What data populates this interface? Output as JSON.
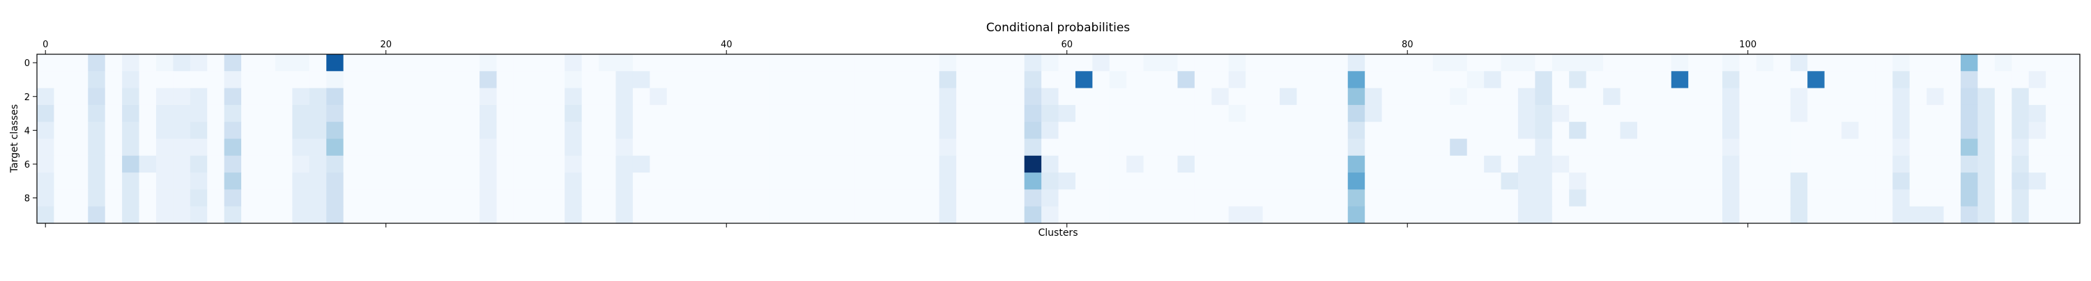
{
  "chart_data": {
    "type": "heatmap",
    "title": "Conditional probabilities",
    "xlabel": "Clusters",
    "ylabel": "Target classes",
    "x_axis_position": "top",
    "n_clusters": 120,
    "n_classes": 10,
    "xlim": [
      -0.5,
      119.5
    ],
    "ylim": [
      9.5,
      -0.5
    ],
    "x_ticks": [
      0,
      20,
      40,
      60,
      80,
      100
    ],
    "y_ticks": [
      0,
      2,
      4,
      6,
      8
    ],
    "colormap": "Blues",
    "colorscale_max": 0.03,
    "colors": {
      "low": "#f7fbff",
      "high": "#08306b"
    },
    "rows": [
      {
        "class": 0,
        "values": {
          "3": 0.006,
          "5": 0.002,
          "7": 0.001,
          "8": 0.003,
          "9": 0.002,
          "11": 0.006,
          "14": 0.001,
          "15": 0.001,
          "17": 0.025,
          "26": 0.001,
          "31": 0.002,
          "33": 0.001,
          "34": 0.001,
          "53": 0.001,
          "58": 0.003,
          "59": 0.001,
          "62": 0.002,
          "65": 0.001,
          "66": 0.001,
          "70": 0.001,
          "77": 0.003,
          "82": 0.001,
          "83": 0.001,
          "86": 0.001,
          "87": 0.001,
          "89": 0.001,
          "90": 0.001,
          "91": 0.001,
          "96": 0.001,
          "99": 0.001,
          "101": 0.001,
          "103": 0.003,
          "109": 0.001,
          "113": 0.013,
          "115": 0.001
        }
      },
      {
        "class": 1,
        "values": {
          "3": 0.005,
          "5": 0.003,
          "11": 0.002,
          "17": 0.001,
          "26": 0.006,
          "31": 0.001,
          "34": 0.003,
          "35": 0.003,
          "53": 0.005,
          "58": 0.005,
          "61": 0.023,
          "63": 0.001,
          "67": 0.007,
          "70": 0.002,
          "77": 0.016,
          "84": 0.001,
          "85": 0.003,
          "88": 0.005,
          "90": 0.004,
          "96": 0.022,
          "99": 0.004,
          "104": 0.022,
          "109": 0.004,
          "113": 0.006,
          "117": 0.002
        }
      },
      {
        "class": 2,
        "values": {
          "0": 0.003,
          "3": 0.006,
          "5": 0.004,
          "7": 0.002,
          "8": 0.002,
          "9": 0.003,
          "11": 0.006,
          "15": 0.003,
          "16": 0.004,
          "17": 0.007,
          "26": 0.002,
          "31": 0.003,
          "34": 0.003,
          "36": 0.002,
          "53": 0.003,
          "58": 0.006,
          "59": 0.003,
          "69": 0.002,
          "73": 0.003,
          "77": 0.012,
          "78": 0.003,
          "83": 0.001,
          "87": 0.003,
          "88": 0.005,
          "92": 0.003,
          "99": 0.003,
          "103": 0.002,
          "109": 0.003,
          "111": 0.002,
          "113": 0.007,
          "114": 0.004,
          "116": 0.004
        }
      },
      {
        "class": 3,
        "values": {
          "0": 0.005,
          "3": 0.005,
          "5": 0.005,
          "7": 0.003,
          "8": 0.003,
          "9": 0.003,
          "11": 0.004,
          "15": 0.004,
          "16": 0.004,
          "17": 0.006,
          "26": 0.003,
          "31": 0.004,
          "34": 0.003,
          "53": 0.003,
          "58": 0.007,
          "59": 0.004,
          "60": 0.003,
          "70": 0.001,
          "77": 0.008,
          "78": 0.003,
          "87": 0.003,
          "88": 0.004,
          "89": 0.002,
          "99": 0.003,
          "103": 0.002,
          "109": 0.003,
          "113": 0.007,
          "114": 0.004,
          "116": 0.004,
          "117": 0.003
        }
      },
      {
        "class": 4,
        "values": {
          "0": 0.003,
          "3": 0.004,
          "5": 0.004,
          "7": 0.003,
          "8": 0.003,
          "9": 0.004,
          "11": 0.006,
          "15": 0.004,
          "16": 0.004,
          "17": 0.009,
          "26": 0.003,
          "31": 0.003,
          "34": 0.003,
          "53": 0.003,
          "58": 0.008,
          "59": 0.003,
          "77": 0.005,
          "87": 0.003,
          "88": 0.004,
          "90": 0.005,
          "93": 0.003,
          "99": 0.003,
          "106": 0.002,
          "109": 0.003,
          "113": 0.007,
          "114": 0.004,
          "116": 0.004,
          "117": 0.002
        }
      },
      {
        "class": 5,
        "values": {
          "0": 0.002,
          "3": 0.004,
          "5": 0.004,
          "7": 0.002,
          "8": 0.002,
          "9": 0.002,
          "11": 0.009,
          "15": 0.003,
          "16": 0.003,
          "17": 0.011,
          "26": 0.002,
          "31": 0.003,
          "34": 0.002,
          "53": 0.002,
          "58": 0.005,
          "77": 0.004,
          "83": 0.006,
          "88": 0.003,
          "99": 0.002,
          "109": 0.002,
          "113": 0.011,
          "114": 0.004,
          "116": 0.003
        }
      },
      {
        "class": 6,
        "values": {
          "0": 0.002,
          "3": 0.004,
          "5": 0.008,
          "6": 0.003,
          "7": 0.002,
          "8": 0.002,
          "9": 0.004,
          "11": 0.006,
          "15": 0.002,
          "16": 0.003,
          "17": 0.005,
          "26": 0.002,
          "31": 0.002,
          "34": 0.003,
          "35": 0.003,
          "53": 0.003,
          "58": 0.03,
          "59": 0.003,
          "64": 0.002,
          "67": 0.003,
          "77": 0.013,
          "85": 0.003,
          "87": 0.003,
          "88": 0.003,
          "89": 0.002,
          "99": 0.003,
          "109": 0.003,
          "113": 0.005,
          "114": 0.004,
          "116": 0.004
        }
      },
      {
        "class": 7,
        "values": {
          "0": 0.003,
          "3": 0.004,
          "5": 0.004,
          "7": 0.002,
          "8": 0.002,
          "9": 0.003,
          "11": 0.009,
          "15": 0.003,
          "16": 0.003,
          "17": 0.006,
          "26": 0.002,
          "31": 0.003,
          "34": 0.003,
          "53": 0.003,
          "58": 0.013,
          "59": 0.004,
          "60": 0.003,
          "77": 0.016,
          "86": 0.004,
          "87": 0.003,
          "88": 0.003,
          "90": 0.002,
          "99": 0.003,
          "103": 0.004,
          "109": 0.005,
          "113": 0.009,
          "114": 0.004,
          "116": 0.005,
          "117": 0.003
        }
      },
      {
        "class": 8,
        "values": {
          "0": 0.003,
          "3": 0.004,
          "5": 0.004,
          "7": 0.002,
          "8": 0.002,
          "9": 0.004,
          "11": 0.006,
          "15": 0.003,
          "16": 0.003,
          "17": 0.006,
          "26": 0.002,
          "31": 0.003,
          "34": 0.003,
          "53": 0.003,
          "58": 0.006,
          "59": 0.003,
          "77": 0.011,
          "87": 0.003,
          "88": 0.003,
          "90": 0.004,
          "99": 0.003,
          "103": 0.004,
          "109": 0.003,
          "113": 0.009,
          "114": 0.004,
          "116": 0.004
        }
      },
      {
        "class": 9,
        "values": {
          "0": 0.004,
          "3": 0.006,
          "5": 0.004,
          "7": 0.002,
          "8": 0.002,
          "9": 0.003,
          "11": 0.004,
          "15": 0.003,
          "16": 0.003,
          "17": 0.006,
          "26": 0.002,
          "31": 0.003,
          "34": 0.003,
          "53": 0.003,
          "58": 0.008,
          "59": 0.002,
          "70": 0.002,
          "71": 0.002,
          "77": 0.012,
          "87": 0.003,
          "88": 0.003,
          "99": 0.003,
          "103": 0.004,
          "109": 0.003,
          "110": 0.003,
          "111": 0.003,
          "113": 0.006,
          "114": 0.004,
          "116": 0.004
        }
      }
    ]
  }
}
